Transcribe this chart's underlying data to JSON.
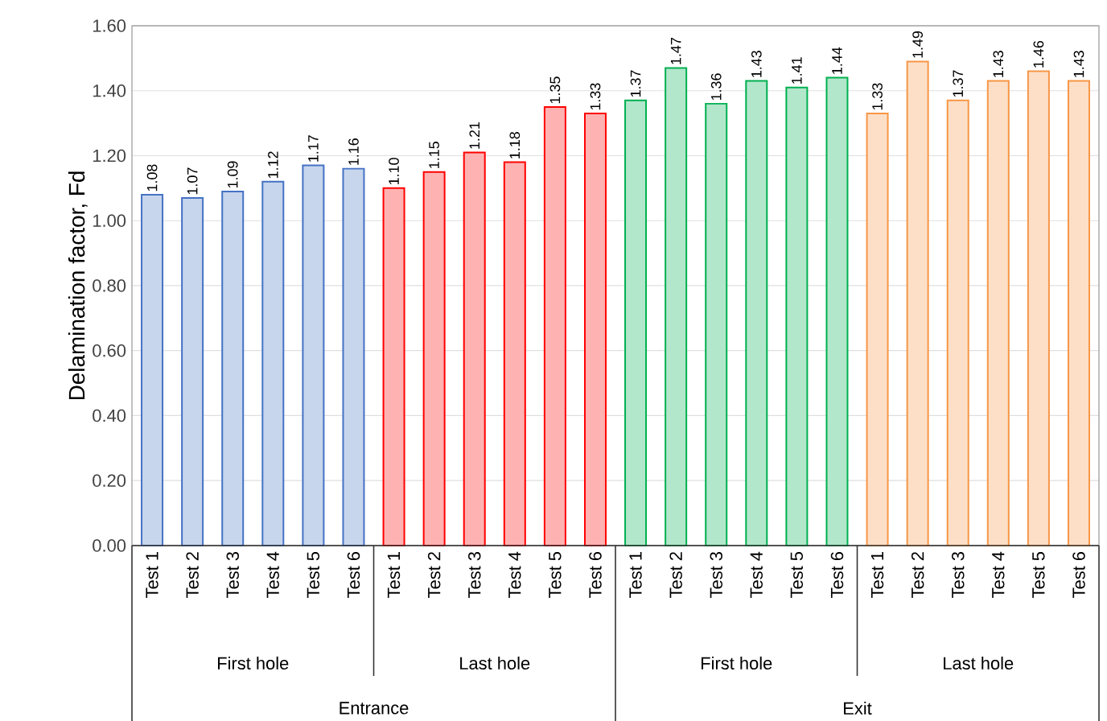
{
  "chart_data": {
    "type": "bar",
    "ylabel": "Delamination factor, Fd",
    "categories": [
      "Test 1",
      "Test 2",
      "Test 3",
      "Test 4",
      "Test 5",
      "Test 6",
      "Test 1",
      "Test 2",
      "Test 3",
      "Test 4",
      "Test 5",
      "Test 6",
      "Test 1",
      "Test 2",
      "Test 3",
      "Test 4",
      "Test 5",
      "Test 6",
      "Test 1",
      "Test 2",
      "Test 3",
      "Test 4",
      "Test 5",
      "Test 6"
    ],
    "values": [
      1.08,
      1.07,
      1.09,
      1.12,
      1.17,
      1.16,
      1.1,
      1.15,
      1.21,
      1.18,
      1.35,
      1.33,
      1.37,
      1.47,
      1.36,
      1.43,
      1.41,
      1.44,
      1.33,
      1.49,
      1.37,
      1.43,
      1.46,
      1.43
    ],
    "value_labels": [
      "1.08",
      "1.07",
      "1.09",
      "1.12",
      "1.17",
      "1.16",
      "1.10",
      "1.15",
      "1.21",
      "1.18",
      "1.35",
      "1.33",
      "1.37",
      "1.47",
      "1.36",
      "1.43",
      "1.41",
      "1.44",
      "1.33",
      "1.49",
      "1.37",
      "1.43",
      "1.46",
      "1.43"
    ],
    "colors": [
      "#4472c4",
      "#4472c4",
      "#4472c4",
      "#4472c4",
      "#4472c4",
      "#4472c4",
      "#ff0000",
      "#ff0000",
      "#ff0000",
      "#ff0000",
      "#ff0000",
      "#ff0000",
      "#00b050",
      "#00b050",
      "#00b050",
      "#00b050",
      "#00b050",
      "#00b050",
      "#f79646",
      "#f79646",
      "#f79646",
      "#f79646",
      "#f79646",
      "#f79646"
    ],
    "annotations": [
      "First hole",
      "Last hole",
      "First hole",
      "Last hole",
      "Entrance",
      "Exit"
    ],
    "ylim": [
      0,
      1.6
    ],
    "yticks": [
      {
        "value": 0,
        "label": "0.00"
      },
      {
        "value": 0.2,
        "label": "0.20"
      },
      {
        "value": 0.4,
        "label": "0.40"
      },
      {
        "value": 0.6,
        "label": "0.60"
      },
      {
        "value": 0.8,
        "label": "0.80"
      },
      {
        "value": 1.0,
        "label": "1.00"
      },
      {
        "value": 1.2,
        "label": "1.20"
      },
      {
        "value": 1.4,
        "label": "1.40"
      },
      {
        "value": 1.6,
        "label": "1.60"
      }
    ],
    "grid": "y"
  }
}
